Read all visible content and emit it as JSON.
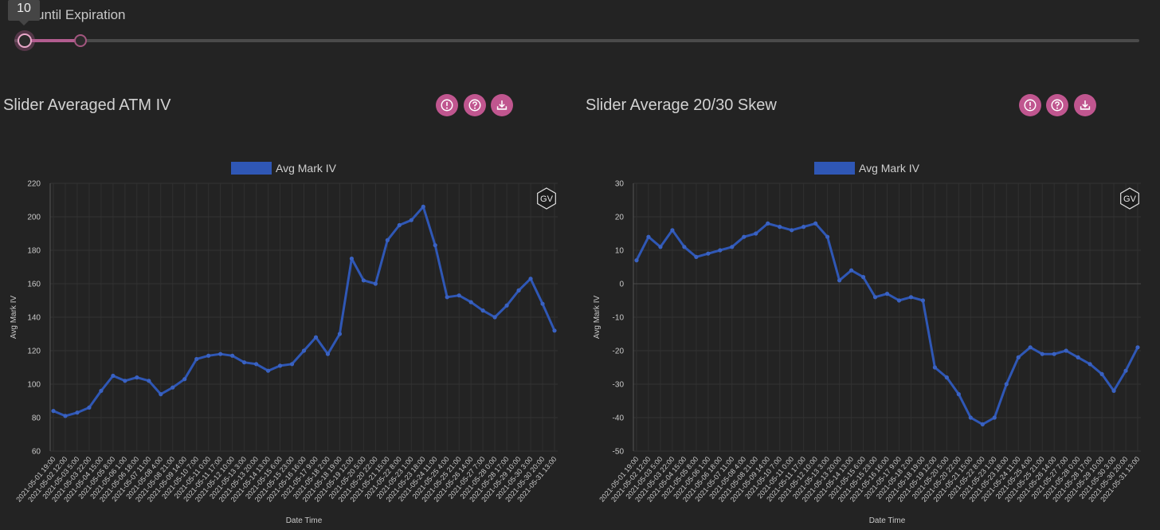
{
  "slider": {
    "label": "until Expiration",
    "tooltip": "10",
    "range": [
      10,
      20
    ]
  },
  "colors": {
    "accent": "#c0568f",
    "series": "#2f57b5",
    "background": "#232323"
  },
  "panels": [
    {
      "title": "Slider Averaged ATM IV",
      "icons": [
        "info-icon",
        "help-icon",
        "download-icon"
      ],
      "badge": "GV",
      "legend": "Avg Mark IV"
    },
    {
      "title": "Slider Average 20/30 Skew",
      "icons": [
        "info-icon",
        "help-icon",
        "download-icon"
      ],
      "badge": "GV",
      "legend": "Avg Mark IV"
    }
  ],
  "chart_data": [
    {
      "type": "line",
      "xlabel": "Date Time",
      "ylabel": "Avg Mark IV",
      "ylim": [
        60,
        220
      ],
      "yticks": [
        60,
        80,
        100,
        120,
        140,
        160,
        180,
        200,
        220
      ],
      "grid": true,
      "legend": "top-center",
      "series": [
        {
          "name": "Avg Mark IV",
          "x": [
            "2021-05-01 19:00",
            "2021-05-02 12:00",
            "2021-05-03 5:00",
            "2021-05-03 22:00",
            "2021-05-04 15:00",
            "2021-05-05 8:00",
            "2021-05-06 1:00",
            "2021-05-06 18:00",
            "2021-05-07 11:00",
            "2021-05-08 4:00",
            "2021-05-08 21:00",
            "2021-05-09 14:00",
            "2021-05-10 7:00",
            "2021-05-11 0:00",
            "2021-05-11 17:00",
            "2021-05-12 10:00",
            "2021-05-13 3:00",
            "2021-05-13 20:00",
            "2021-05-14 13:00",
            "2021-05-15 6:00",
            "2021-05-15 23:00",
            "2021-05-16 16:00",
            "2021-05-17 9:00",
            "2021-05-18 2:00",
            "2021-05-18 19:00",
            "2021-05-19 12:00",
            "2021-05-20 5:00",
            "2021-05-20 22:00",
            "2021-05-21 15:00",
            "2021-05-22 8:00",
            "2021-05-23 1:00",
            "2021-05-23 18:00",
            "2021-05-24 11:00",
            "2021-05-25 4:00",
            "2021-05-25 21:00",
            "2021-05-26 14:00",
            "2021-05-27 7:00",
            "2021-05-28 0:00",
            "2021-05-28 17:00",
            "2021-05-29 10:00",
            "2021-05-30 3:00",
            "2021-05-30 20:00",
            "2021-05-31 13:00"
          ],
          "y": [
            84,
            81,
            83,
            86,
            96,
            105,
            102,
            104,
            102,
            94,
            98,
            103,
            115,
            117,
            118,
            117,
            113,
            112,
            108,
            111,
            112,
            120,
            128,
            118,
            130,
            175,
            162,
            160,
            186,
            195,
            198,
            206,
            183,
            152,
            153,
            149,
            144,
            140,
            147,
            156,
            163,
            148,
            132
          ]
        }
      ]
    },
    {
      "type": "line",
      "xlabel": "Date Time",
      "ylabel": "Avg Mark IV",
      "ylim": [
        -50,
        30
      ],
      "yticks": [
        -50,
        -40,
        -30,
        -20,
        -10,
        0,
        10,
        20,
        30
      ],
      "grid": true,
      "legend": "top-center",
      "series": [
        {
          "name": "Avg Mark IV",
          "x": [
            "2021-05-01 19:00",
            "2021-05-02 12:00",
            "2021-05-03 5:00",
            "2021-05-03 22:00",
            "2021-05-04 15:00",
            "2021-05-05 8:00",
            "2021-05-06 1:00",
            "2021-05-06 18:00",
            "2021-05-07 11:00",
            "2021-05-08 4:00",
            "2021-05-08 21:00",
            "2021-05-09 14:00",
            "2021-05-10 7:00",
            "2021-05-11 0:00",
            "2021-05-11 17:00",
            "2021-05-12 10:00",
            "2021-05-13 3:00",
            "2021-05-13 20:00",
            "2021-05-14 13:00",
            "2021-05-15 6:00",
            "2021-05-15 23:00",
            "2021-05-16 16:00",
            "2021-05-17 9:00",
            "2021-05-18 2:00",
            "2021-05-18 19:00",
            "2021-05-19 12:00",
            "2021-05-20 5:00",
            "2021-05-20 22:00",
            "2021-05-21 15:00",
            "2021-05-22 8:00",
            "2021-05-23 1:00",
            "2021-05-23 18:00",
            "2021-05-24 11:00",
            "2021-05-25 4:00",
            "2021-05-25 21:00",
            "2021-05-26 14:00",
            "2021-05-27 7:00",
            "2021-05-28 0:00",
            "2021-05-28 17:00",
            "2021-05-29 10:00",
            "2021-05-30 3:00",
            "2021-05-30 20:00",
            "2021-05-31 13:00"
          ],
          "y": [
            7,
            14,
            11,
            16,
            11,
            8,
            9,
            10,
            11,
            14,
            15,
            18,
            17,
            16,
            17,
            18,
            14,
            1,
            4,
            2,
            -4,
            -3,
            -5,
            -4,
            -5,
            -25,
            -28,
            -33,
            -40,
            -42,
            -40,
            -30,
            -22,
            -19,
            -21,
            -21,
            -20,
            -22,
            -24,
            -27,
            -32,
            -26,
            -19
          ]
        }
      ]
    }
  ]
}
